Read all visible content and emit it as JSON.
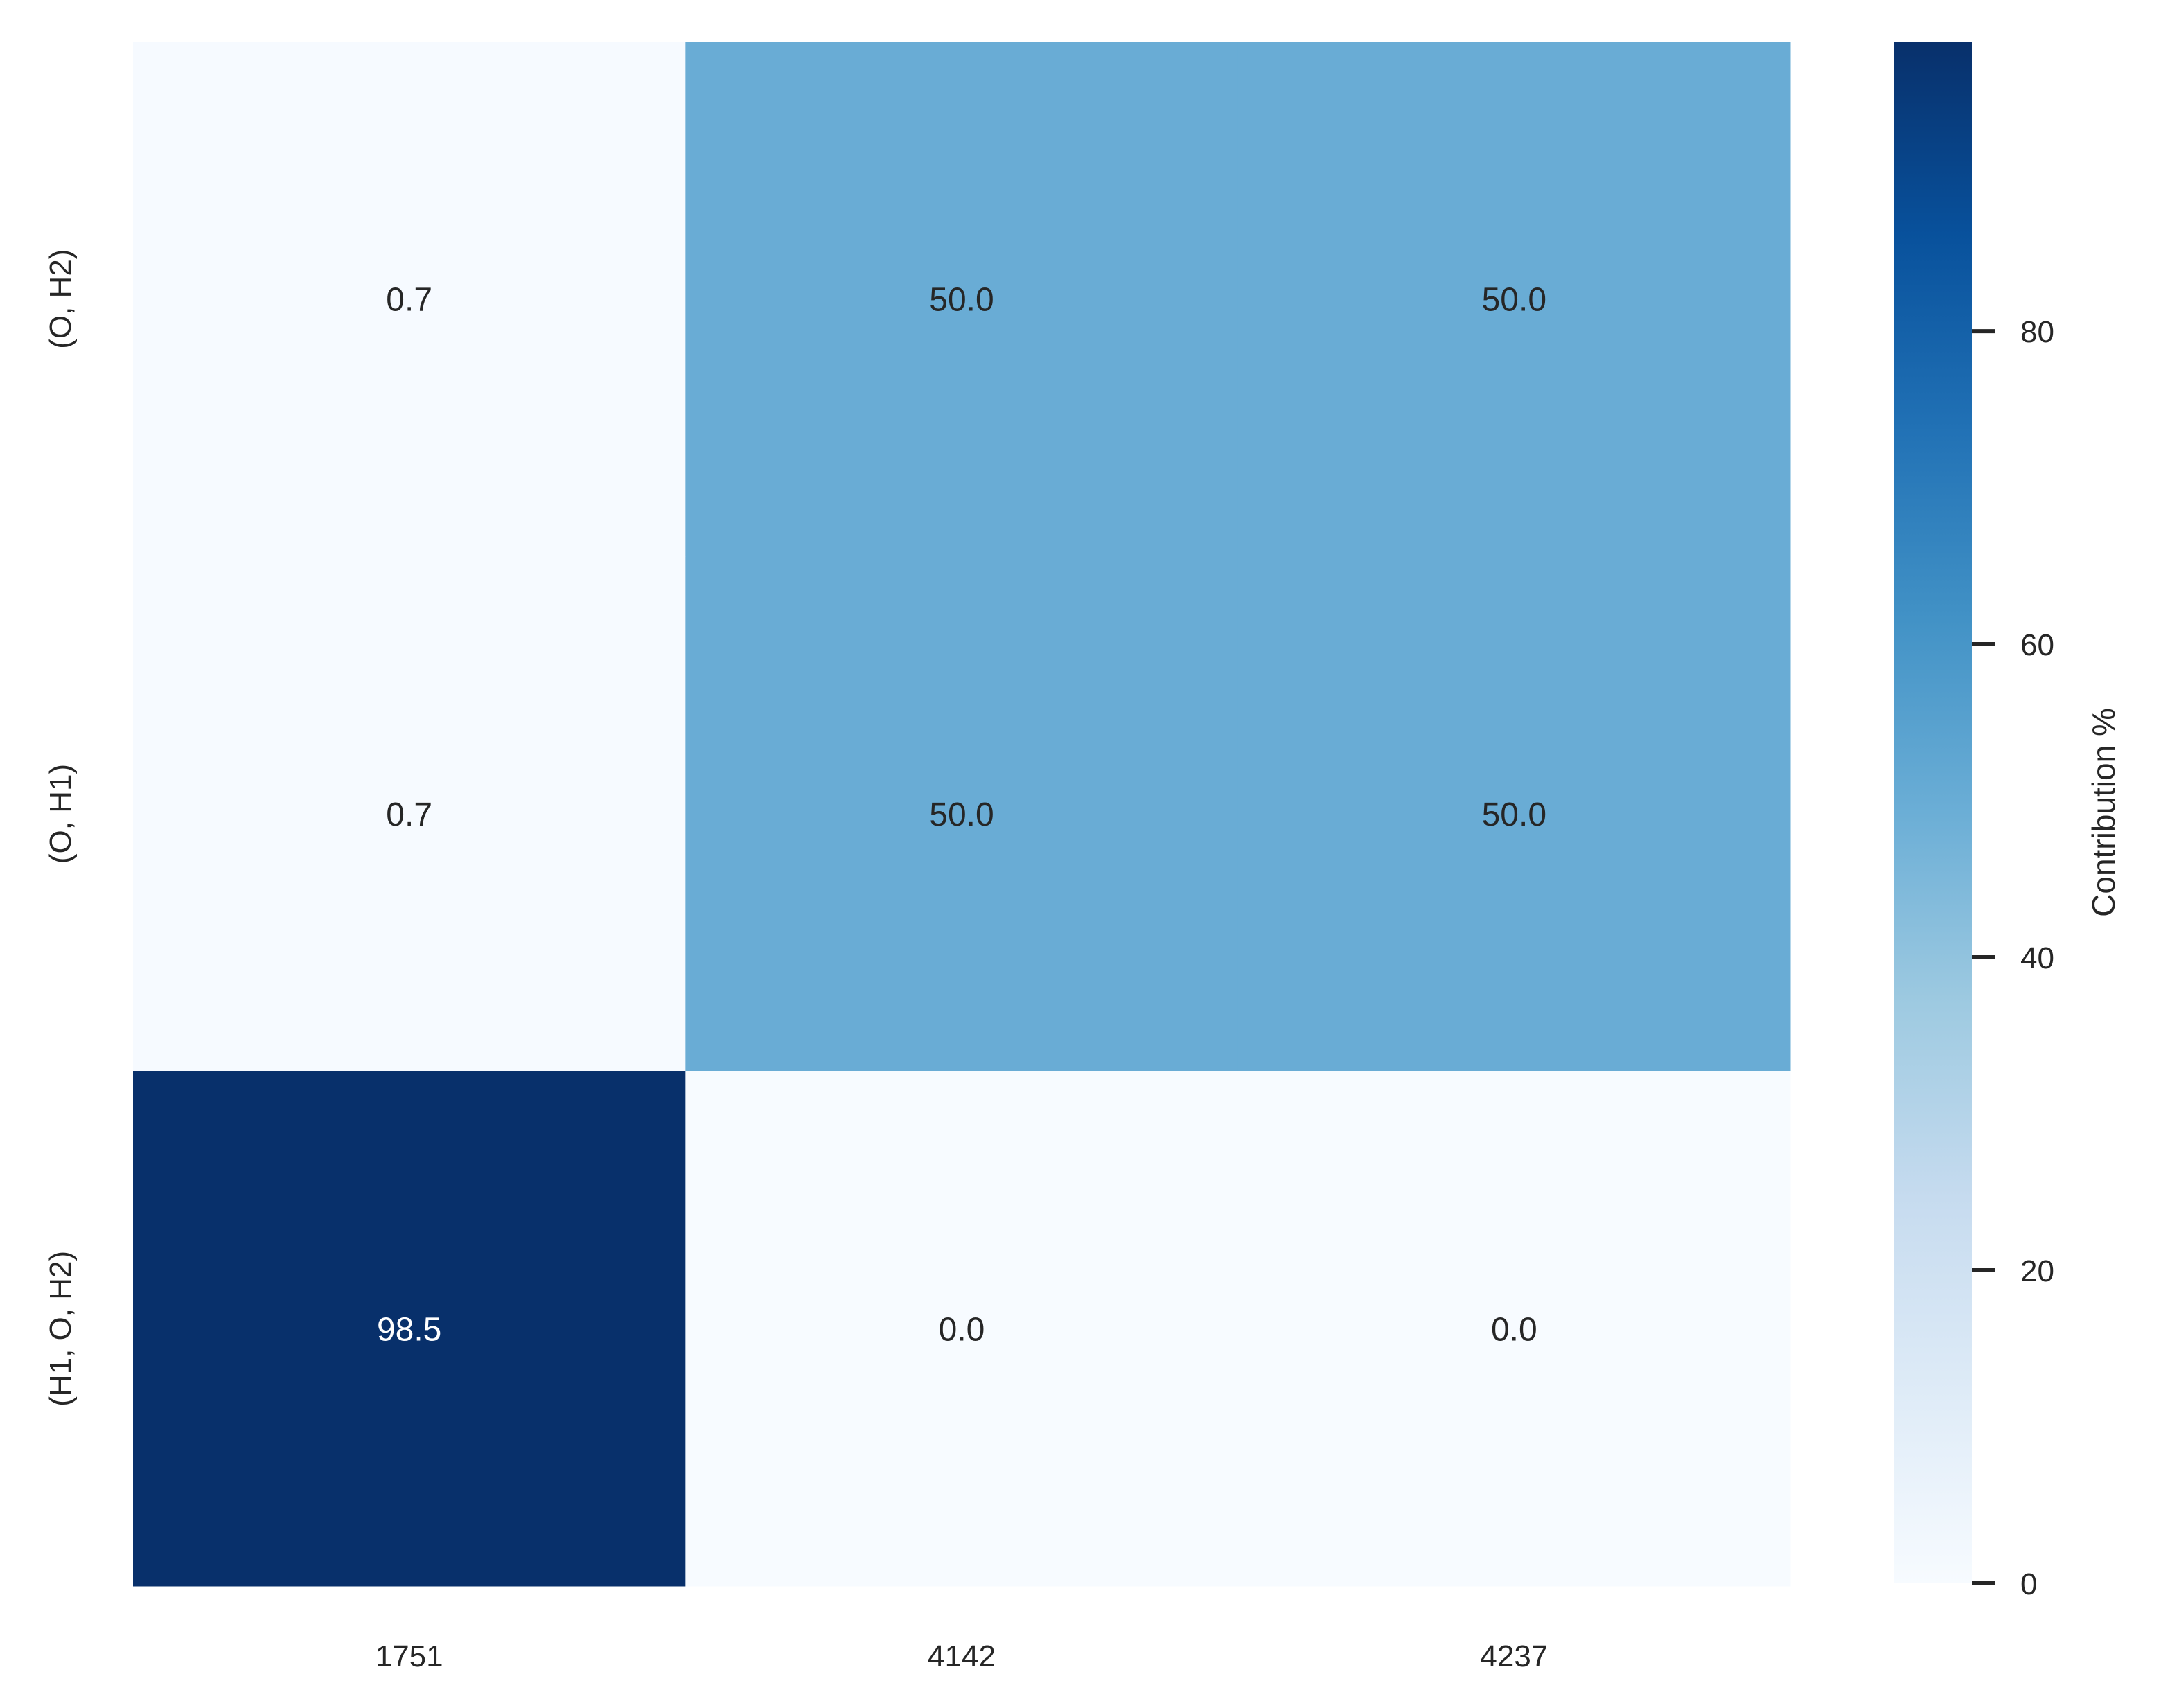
{
  "chart_data": {
    "type": "heatmap",
    "x_categories": [
      "1751",
      "4142",
      "4237"
    ],
    "y_categories": [
      "(O, H2)",
      "(O, H1)",
      "(H1, O, H2)"
    ],
    "values": [
      [
        0.7,
        50.0,
        50.0
      ],
      [
        0.7,
        50.0,
        50.0
      ],
      [
        98.5,
        0.0,
        0.0
      ]
    ],
    "value_format": "0.1f",
    "colormap": "Blues",
    "colorbar": {
      "label": "Contribution %",
      "ticks": [
        0,
        20,
        40,
        60,
        80
      ],
      "range": [
        0,
        98.5
      ]
    }
  }
}
